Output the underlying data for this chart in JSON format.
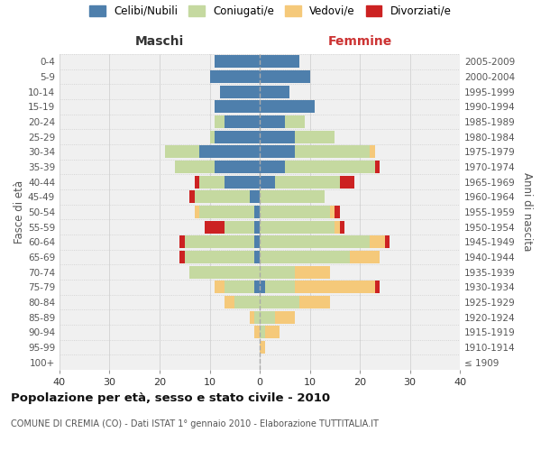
{
  "age_groups": [
    "100+",
    "95-99",
    "90-94",
    "85-89",
    "80-84",
    "75-79",
    "70-74",
    "65-69",
    "60-64",
    "55-59",
    "50-54",
    "45-49",
    "40-44",
    "35-39",
    "30-34",
    "25-29",
    "20-24",
    "15-19",
    "10-14",
    "5-9",
    "0-4"
  ],
  "birth_years": [
    "≤ 1909",
    "1910-1914",
    "1915-1919",
    "1920-1924",
    "1925-1929",
    "1930-1934",
    "1935-1939",
    "1940-1944",
    "1945-1949",
    "1950-1954",
    "1955-1959",
    "1960-1964",
    "1965-1969",
    "1970-1974",
    "1975-1979",
    "1980-1984",
    "1985-1989",
    "1990-1994",
    "1995-1999",
    "2000-2004",
    "2005-2009"
  ],
  "male": {
    "celibi": [
      0,
      0,
      0,
      0,
      0,
      1,
      0,
      1,
      1,
      1,
      1,
      2,
      7,
      9,
      12,
      9,
      7,
      9,
      8,
      10,
      9
    ],
    "coniugati": [
      0,
      0,
      0,
      1,
      5,
      6,
      14,
      14,
      14,
      6,
      11,
      11,
      5,
      8,
      7,
      1,
      2,
      0,
      0,
      0,
      0
    ],
    "vedovi": [
      0,
      0,
      1,
      1,
      2,
      2,
      0,
      0,
      0,
      0,
      1,
      0,
      0,
      0,
      0,
      0,
      0,
      0,
      0,
      0,
      0
    ],
    "divorziati": [
      0,
      0,
      0,
      0,
      0,
      0,
      0,
      1,
      1,
      4,
      0,
      1,
      1,
      0,
      0,
      0,
      0,
      0,
      0,
      0,
      0
    ]
  },
  "female": {
    "nubili": [
      0,
      0,
      0,
      0,
      0,
      1,
      0,
      0,
      0,
      0,
      0,
      0,
      3,
      5,
      7,
      7,
      5,
      11,
      6,
      10,
      8
    ],
    "coniugate": [
      0,
      0,
      1,
      3,
      8,
      6,
      7,
      18,
      22,
      15,
      14,
      13,
      13,
      18,
      15,
      8,
      4,
      0,
      0,
      0,
      0
    ],
    "vedove": [
      0,
      1,
      3,
      4,
      6,
      16,
      7,
      6,
      3,
      1,
      1,
      0,
      0,
      0,
      1,
      0,
      0,
      0,
      0,
      0,
      0
    ],
    "divorziate": [
      0,
      0,
      0,
      0,
      0,
      1,
      0,
      0,
      1,
      1,
      1,
      0,
      3,
      1,
      0,
      0,
      0,
      0,
      0,
      0,
      0
    ]
  },
  "colors": {
    "celibi": "#4e7fac",
    "coniugati": "#c5d9a0",
    "vedovi": "#f5c97a",
    "divorziati": "#cc2222"
  },
  "title": "Popolazione per età, sesso e stato civile - 2010",
  "subtitle": "COMUNE DI CREMIA (CO) - Dati ISTAT 1° gennaio 2010 - Elaborazione TUTTITALIA.IT",
  "xlabel_left": "Maschi",
  "xlabel_right": "Femmine",
  "ylabel_left": "Fasce di età",
  "ylabel_right": "Anni di nascita",
  "legend_labels": [
    "Celibi/Nubili",
    "Coniugati/e",
    "Vedovi/e",
    "Divorziati/e"
  ],
  "xlim": 40,
  "bg_color": "#f0f0f0",
  "grid_color": "#cccccc"
}
